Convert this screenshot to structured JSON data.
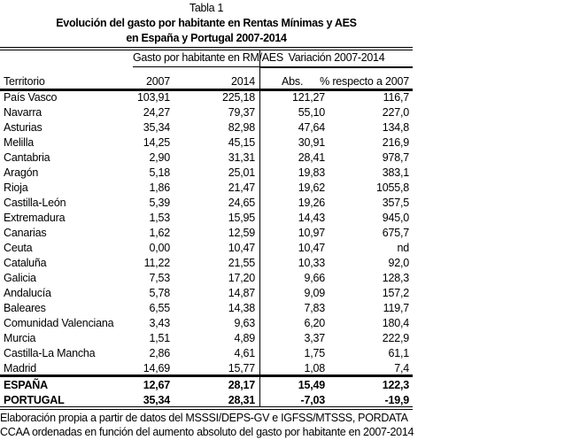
{
  "caption": "Tabla 1",
  "title_line1": "Evolución del gasto por habitante en Rentas Mínimas y AES",
  "title_line2": "en España y Portugal 2007-2014",
  "header": {
    "group1": "Gasto por habitante en RM/AES",
    "group2": "Variación 2007-2014",
    "territorio": "Territorio",
    "y2007": "2007",
    "y2014": "2014",
    "abs": "Abs.",
    "pct": "% respecto a 2007"
  },
  "rows": [
    [
      "País Vasco",
      "103,91",
      "225,18",
      "121,27",
      "116,7"
    ],
    [
      "Navarra",
      "24,27",
      "79,37",
      "55,10",
      "227,0"
    ],
    [
      "Asturias",
      "35,34",
      "82,98",
      "47,64",
      "134,8"
    ],
    [
      "Melilla",
      "14,25",
      "45,15",
      "30,91",
      "216,9"
    ],
    [
      "Cantabria",
      "2,90",
      "31,31",
      "28,41",
      "978,7"
    ],
    [
      "Aragón",
      "5,18",
      "25,01",
      "19,83",
      "383,1"
    ],
    [
      "Rioja",
      "1,86",
      "21,47",
      "19,62",
      "1055,8"
    ],
    [
      "Castilla-León",
      "5,39",
      "24,65",
      "19,26",
      "357,5"
    ],
    [
      "Extremadura",
      "1,53",
      "15,95",
      "14,43",
      "945,0"
    ],
    [
      "Canarias",
      "1,62",
      "12,59",
      "10,97",
      "675,7"
    ],
    [
      "Ceuta",
      "0,00",
      "10,47",
      "10,47",
      "nd"
    ],
    [
      "Cataluña",
      "11,22",
      "21,55",
      "10,33",
      "92,0"
    ],
    [
      "Galicia",
      "7,53",
      "17,20",
      "9,66",
      "128,3"
    ],
    [
      "Andalucía",
      "5,78",
      "14,87",
      "9,09",
      "157,2"
    ],
    [
      "Baleares",
      "6,55",
      "14,38",
      "7,83",
      "119,7"
    ],
    [
      "Comunidad Valenciana",
      "3,43",
      "9,63",
      "6,20",
      "180,4"
    ],
    [
      "Murcia",
      "1,51",
      "4,89",
      "3,37",
      "222,9"
    ],
    [
      "Castilla-La Mancha",
      "2,86",
      "4,61",
      "1,75",
      "61,1"
    ],
    [
      "Madrid",
      "14,69",
      "15,77",
      "1,08",
      "7,4"
    ]
  ],
  "totals": [
    [
      "ESPAÑA",
      "12,67",
      "28,17",
      "15,49",
      "122,3"
    ],
    [
      "PORTUGAL",
      "35,34",
      "28,31",
      "-7,03",
      "-19,9"
    ]
  ],
  "notes": [
    "Elaboración propia a partir de datos del MSSSI/DEPS-GV e IGFSS/MTSSS, PORDATA",
    "CCAA ordenadas en función del aumento absoluto del gasto por habitante en 2007-2014"
  ]
}
